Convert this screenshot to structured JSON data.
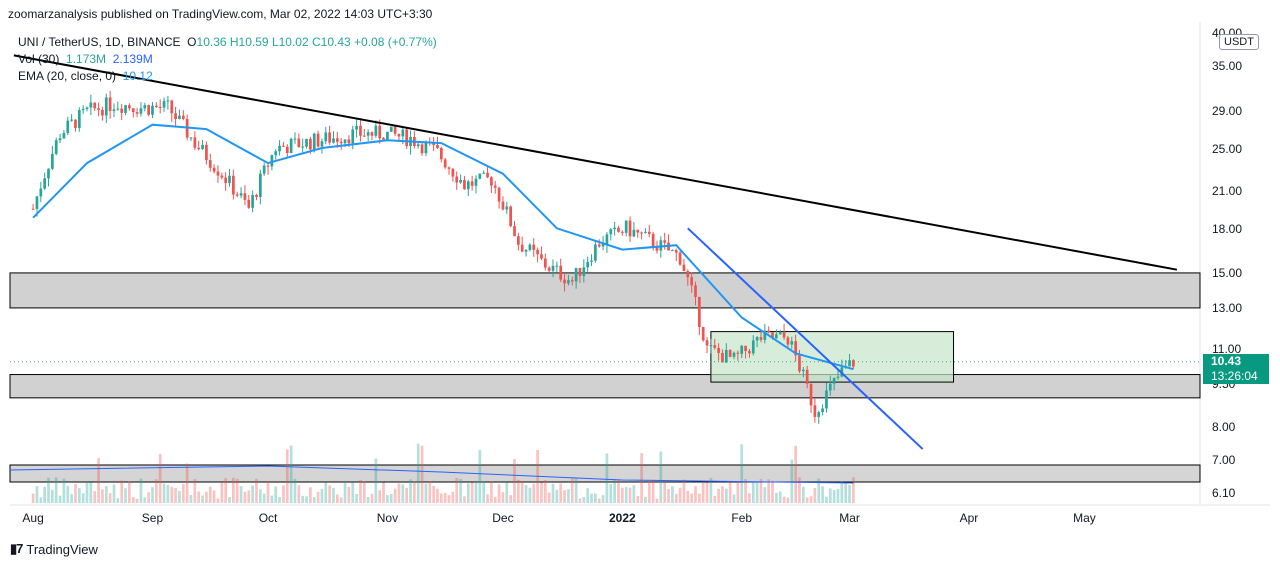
{
  "header": {
    "published": "zoomarzanalysis published on TradingView.com, Mar 02, 2022 14:03 UTC+3:30"
  },
  "legend": {
    "symbol": "UNI / TetherUS, 1D, BINANCE",
    "open": "O10.36",
    "high": "H10.59",
    "low": "L10.02",
    "close": "C10.43",
    "change": "+0.08 (+0.77%)",
    "vol_label": "Vol (30)",
    "vol_value1": "1.173M",
    "vol_value2": "2.139M",
    "ema_label": "EMA (20, close, 0)",
    "ema_value": "10.12"
  },
  "currency_button": "USDT",
  "last_price": "10.43",
  "countdown": "13:26:04",
  "footer": {
    "brand": "TradingView"
  },
  "colors": {
    "up": "#26a69a",
    "down": "#ef5350",
    "ema": "#2196f3",
    "trendline_long": "#000000",
    "trendline_short": "#2962ff",
    "zone_gray": "#b2b2b2",
    "zone_green": "#c8e6c9"
  },
  "chart_data": {
    "type": "line",
    "scale": "log",
    "y_ticks": [
      "40.00",
      "35.00",
      "29.00",
      "25.00",
      "21.00",
      "18.00",
      "15.00",
      "13.00",
      "11.00",
      "9.50",
      "8.00",
      "7.00",
      "6.10"
    ],
    "x_ticks": [
      "Aug",
      "Sep",
      "Oct",
      "Nov",
      "Dec",
      "2022",
      "Feb",
      "Mar",
      "Apr",
      "May"
    ],
    "ylim": [
      6.1,
      40
    ],
    "series": [
      {
        "name": "UNI / TetherUS",
        "x": [
          "2021-08-01",
          "2021-08-08",
          "2021-08-15",
          "2021-08-22",
          "2021-08-29",
          "2021-09-05",
          "2021-09-12",
          "2021-09-19",
          "2021-09-26",
          "2021-10-03",
          "2021-10-10",
          "2021-10-17",
          "2021-10-24",
          "2021-10-31",
          "2021-11-07",
          "2021-11-14",
          "2021-11-21",
          "2021-11-28",
          "2021-12-05",
          "2021-12-12",
          "2021-12-19",
          "2021-12-26",
          "2022-01-02",
          "2022-01-09",
          "2022-01-16",
          "2022-01-23",
          "2022-01-30",
          "2022-02-06",
          "2022-02-13",
          "2022-02-20",
          "2022-02-27",
          "2022-03-02"
        ],
        "values": [
          19.5,
          26.5,
          29.0,
          30.0,
          29.5,
          29.5,
          25.5,
          22.5,
          19.5,
          25.0,
          25.5,
          26.0,
          26.5,
          26.5,
          26.0,
          24.5,
          21.5,
          22.0,
          17.0,
          15.5,
          14.5,
          17.0,
          18.0,
          17.0,
          16.0,
          11.0,
          10.5,
          11.5,
          11.5,
          8.5,
          10.0,
          10.43
        ]
      },
      {
        "name": "EMA (20, close, 0)",
        "x": [
          "2021-08-01",
          "2021-08-15",
          "2021-09-01",
          "2021-09-15",
          "2021-10-01",
          "2021-10-15",
          "2021-11-01",
          "2021-11-15",
          "2021-12-01",
          "2021-12-15",
          "2022-01-01",
          "2022-01-15",
          "2022-02-01",
          "2022-02-15",
          "2022-03-02"
        ],
        "values": [
          18.8,
          23.5,
          27.5,
          27.0,
          23.5,
          25.0,
          25.8,
          25.5,
          22.5,
          18.0,
          16.5,
          16.8,
          12.5,
          10.8,
          10.12
        ]
      }
    ],
    "trendlines": [
      {
        "from": [
          "2021-07-27",
          36.5
        ],
        "to": [
          "2022-05-25",
          15.2
        ]
      },
      {
        "from": [
          "2022-01-18",
          18.0
        ],
        "to": [
          "2022-03-20",
          7.3
        ]
      }
    ],
    "zones": [
      {
        "low": 13.0,
        "high": 15.0
      },
      {
        "low": 9.0,
        "high": 9.9
      },
      {
        "low": 9.6,
        "high": 11.8,
        "start": "2022-01-24",
        "end": "2022-03-28"
      }
    ],
    "volume": {
      "label": "Vol (30)",
      "last": "1.173M",
      "average": "2.139M"
    }
  }
}
